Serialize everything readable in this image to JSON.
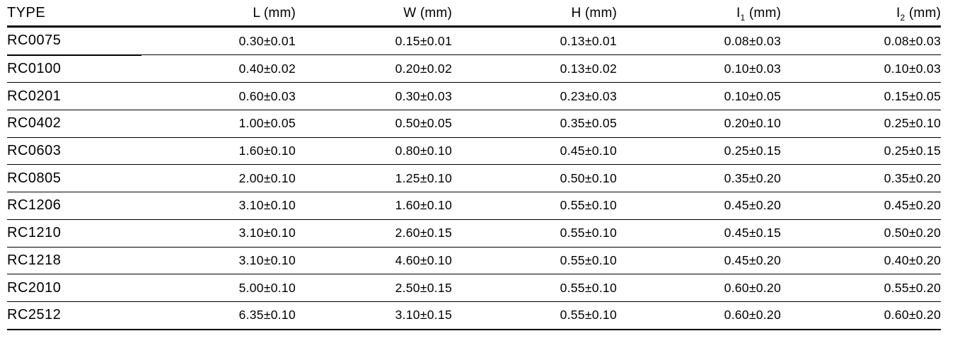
{
  "colors": {
    "background": "#ffffff",
    "text": "#000000",
    "rule": "#000000"
  },
  "table": {
    "columns": {
      "type": "TYPE",
      "l": "L (mm)",
      "w": "W (mm)",
      "h": "H (mm)",
      "i1": {
        "base": "I",
        "sub": "1",
        "unit": " (mm)"
      },
      "i2": {
        "base": "I",
        "sub": "2",
        "unit": " (mm)"
      }
    },
    "rows": [
      {
        "type": "RC0075",
        "l": "0.30±0.01",
        "w": "0.15±0.01",
        "h": "0.13±0.01",
        "i1": "0.08±0.03",
        "i2": "0.08±0.03"
      },
      {
        "type": "RC0100",
        "l": "0.40±0.02",
        "w": "0.20±0.02",
        "h": "0.13±0.02",
        "i1": "0.10±0.03",
        "i2": "0.10±0.03"
      },
      {
        "type": "RC0201",
        "l": "0.60±0.03",
        "w": "0.30±0.03",
        "h": "0.23±0.03",
        "i1": "0.10±0.05",
        "i2": "0.15±0.05"
      },
      {
        "type": "RC0402",
        "l": "1.00±0.05",
        "w": "0.50±0.05",
        "h": "0.35±0.05",
        "i1": "0.20±0.10",
        "i2": "0.25±0.10"
      },
      {
        "type": "RC0603",
        "l": "1.60±0.10",
        "w": "0.80±0.10",
        "h": "0.45±0.10",
        "i1": "0.25±0.15",
        "i2": "0.25±0.15"
      },
      {
        "type": "RC0805",
        "l": "2.00±0.10",
        "w": "1.25±0.10",
        "h": "0.50±0.10",
        "i1": "0.35±0.20",
        "i2": "0.35±0.20"
      },
      {
        "type": "RC1206",
        "l": "3.10±0.10",
        "w": "1.60±0.10",
        "h": "0.55±0.10",
        "i1": "0.45±0.20",
        "i2": "0.45±0.20"
      },
      {
        "type": "RC1210",
        "l": "3.10±0.10",
        "w": "2.60±0.15",
        "h": "0.55±0.10",
        "i1": "0.45±0.15",
        "i2": "0.50±0.20"
      },
      {
        "type": "RC1218",
        "l": "3.10±0.10",
        "w": "4.60±0.10",
        "h": "0.55±0.10",
        "i1": "0.45±0.20",
        "i2": "0.40±0.20"
      },
      {
        "type": "RC2010",
        "l": "5.00±0.10",
        "w": "2.50±0.15",
        "h": "0.55±0.10",
        "i1": "0.60±0.20",
        "i2": "0.55±0.20"
      },
      {
        "type": "RC2512",
        "l": "6.35±0.10",
        "w": "3.10±0.15",
        "h": "0.55±0.10",
        "i1": "0.60±0.20",
        "i2": "0.60±0.20"
      }
    ]
  }
}
